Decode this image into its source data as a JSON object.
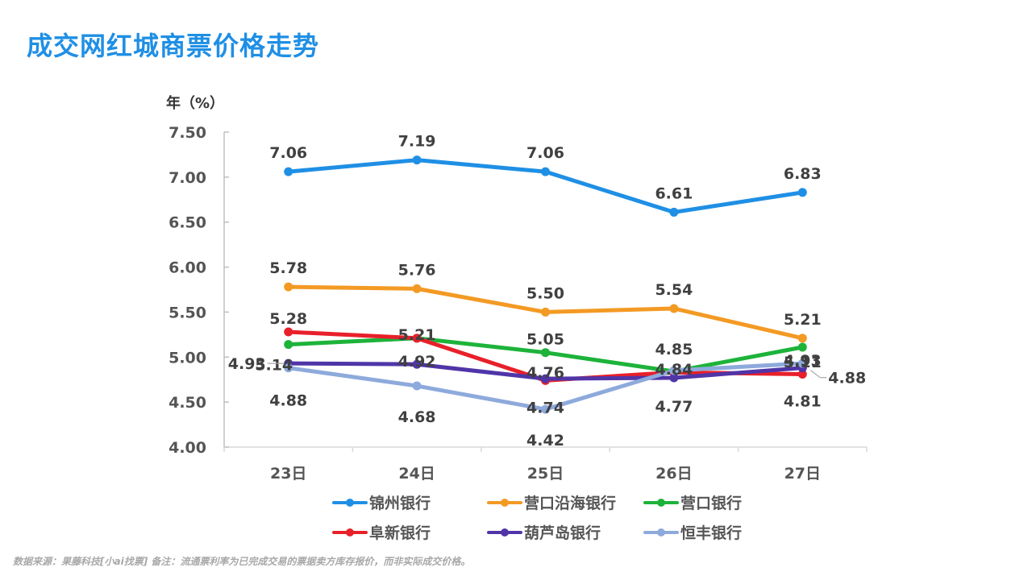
{
  "page": {
    "title": "成交网红城商票价格走势",
    "footer": "数据来源：果藤科技[小ai找票] 备注：流通票利率为已完成交易的票据卖方库存报价，而非实际成交价格。"
  },
  "chart_data": {
    "type": "line",
    "title": "成交网红城商票价格走势",
    "ylabel": "年（%）",
    "xlabel": "",
    "categories": [
      "23日",
      "24日",
      "25日",
      "26日",
      "27日"
    ],
    "ylim": [
      4.0,
      7.5
    ],
    "yticks": [
      "4.00",
      "4.50",
      "5.00",
      "5.50",
      "6.00",
      "6.50",
      "7.00",
      "7.50"
    ],
    "grid": false,
    "legend_position": "bottom",
    "series": [
      {
        "name": "锦州银行",
        "color": "#1f8fe5",
        "values": [
          7.06,
          7.19,
          7.06,
          6.61,
          6.83
        ],
        "labels": [
          "7.06",
          "7.19",
          "7.06",
          "6.61",
          "6.83"
        ]
      },
      {
        "name": "营口沿海银行",
        "color": "#f39a24",
        "values": [
          5.78,
          5.76,
          5.5,
          5.54,
          5.21
        ],
        "labels": [
          "5.78",
          "5.76",
          "5.50",
          "5.54",
          "5.21"
        ]
      },
      {
        "name": "营口银行",
        "color": "#1db33a",
        "values": [
          5.14,
          5.21,
          5.05,
          4.84,
          5.11
        ],
        "labels": [
          "5.14",
          "",
          "5.05",
          "4.84",
          "5.11"
        ]
      },
      {
        "name": "阜新银行",
        "color": "#e8202a",
        "values": [
          5.28,
          5.21,
          4.74,
          4.83,
          4.81
        ],
        "labels": [
          "5.28",
          "5.21",
          "4.74",
          "",
          "4.81"
        ]
      },
      {
        "name": "葫芦岛银行",
        "color": "#5035a8",
        "values": [
          4.93,
          4.92,
          4.76,
          4.77,
          4.88
        ],
        "labels": [
          "4.93",
          "4.92",
          "4.76",
          "4.77",
          "4.88"
        ]
      },
      {
        "name": "恒丰银行",
        "color": "#8eaadc",
        "values": [
          4.88,
          4.68,
          4.42,
          4.85,
          4.93
        ],
        "labels": [
          "4.88",
          "4.68",
          "4.42",
          "4.85",
          "4.93"
        ]
      }
    ]
  }
}
